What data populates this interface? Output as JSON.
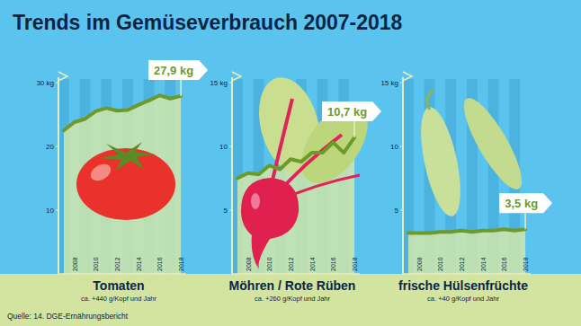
{
  "title": "Trends im Gemüseverbrauch 2007-2018",
  "source": "Quelle: 14. DGE-Ernährungsbericht",
  "chart_data": [
    {
      "type": "line",
      "title": "Tomaten",
      "subtitle": "ca. +440 g/Kopf und Jahr",
      "x": [
        2007,
        2008,
        2009,
        2010,
        2011,
        2012,
        2013,
        2014,
        2015,
        2016,
        2017,
        2018
      ],
      "values": [
        22.5,
        23.8,
        24.3,
        25.5,
        26.0,
        25.6,
        25.7,
        26.5,
        27.2,
        28.0,
        27.5,
        27.9
      ],
      "color": "#6e9a2c",
      "xlim": [
        2006.5,
        2018.5
      ],
      "xticks": [
        2008,
        2010,
        2012,
        2014,
        2016,
        2018
      ],
      "ylim": [
        0,
        30
      ],
      "yticks": [
        10,
        20,
        {
          "value": 30,
          "label": "30 kg"
        }
      ],
      "grid": false,
      "annotations": [
        {
          "x": 2018,
          "y": 27.9,
          "text": "27,9 kg"
        }
      ]
    },
    {
      "type": "line",
      "title": "Möhren / Rote Rüben",
      "subtitle": "ca. +260 g/Kopf und Jahr",
      "x": [
        2007,
        2008,
        2009,
        2010,
        2011,
        2012,
        2013,
        2014,
        2015,
        2016,
        2017,
        2018
      ],
      "values": [
        7.5,
        7.9,
        7.8,
        8.5,
        8.2,
        9.0,
        8.8,
        9.5,
        9.5,
        10.3,
        9.5,
        10.7
      ],
      "color": "#6e9a2c",
      "xlim": [
        2006.5,
        2018.5
      ],
      "xticks": [
        2008,
        2010,
        2012,
        2014,
        2016,
        2018
      ],
      "ylim": [
        0,
        15
      ],
      "yticks": [
        5,
        10,
        {
          "value": 15,
          "label": "15 kg"
        }
      ],
      "grid": false,
      "annotations": [
        {
          "x": 2018,
          "y": 10.7,
          "text": "10,7 kg"
        }
      ]
    },
    {
      "type": "line",
      "title": "frische Hülsenfrüchte",
      "subtitle": "ca. +40 g/Kopf und Jahr",
      "x": [
        2007,
        2008,
        2009,
        2010,
        2011,
        2012,
        2013,
        2014,
        2015,
        2016,
        2017,
        2018
      ],
      "values": [
        3.2,
        3.2,
        3.2,
        3.3,
        3.3,
        3.4,
        3.3,
        3.4,
        3.4,
        3.5,
        3.4,
        3.5
      ],
      "color": "#6e9a2c",
      "xlim": [
        2006.5,
        2018.5
      ],
      "xticks": [
        2008,
        2010,
        2012,
        2014,
        2016,
        2018
      ],
      "ylim": [
        0,
        15
      ],
      "yticks": [
        5,
        10,
        {
          "value": 15,
          "label": "15 kg"
        }
      ],
      "grid": false,
      "annotations": [
        {
          "x": 2018,
          "y": 3.5,
          "text": "3,5 kg"
        }
      ]
    }
  ]
}
